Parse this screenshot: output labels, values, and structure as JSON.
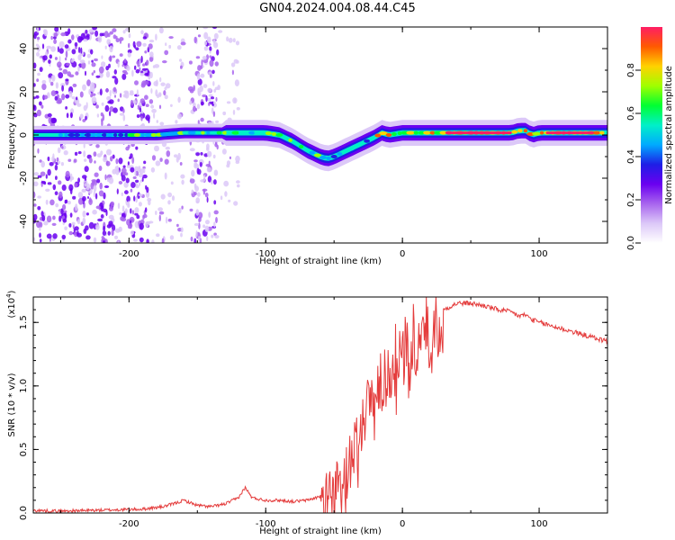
{
  "title": "GN04.2024.004.08.44.C45",
  "colors": {
    "signal": "#e43c3c",
    "axis": "#000000",
    "background": "#ffffff"
  },
  "chart_data": [
    {
      "type": "heatmap",
      "xlabel": "Height of straight line (km)",
      "ylabel": "Frequency (Hz)",
      "xlim": [
        -270,
        150
      ],
      "ylim": [
        -50,
        50
      ],
      "x_ticks": [
        -200,
        -100,
        0,
        100
      ],
      "y_ticks": [
        -40,
        -20,
        0,
        20,
        40
      ],
      "colorbar": {
        "label": "Normalized spectral amplitude",
        "range": [
          0,
          1
        ],
        "ticks": [
          "0.0",
          "0.2",
          "0.4",
          "0.6",
          "0.8"
        ],
        "tick_values": [
          0,
          0.2,
          0.4,
          0.6,
          0.8
        ],
        "colormap": [
          "#ffffff",
          "#dcc8f8",
          "#a864ee",
          "#6a00f0",
          "#1e1ee6",
          "#00aaff",
          "#00f0c8",
          "#00ff32",
          "#a0ff00",
          "#ffd200",
          "#ff5a00",
          "#ff1e64"
        ]
      },
      "ridge": {
        "x": [
          -265,
          -240,
          -220,
          -200,
          -180,
          -160,
          -140,
          -120,
          -100,
          -90,
          -80,
          -70,
          -60,
          -55,
          -50,
          -40,
          -30,
          -20,
          -15,
          -10,
          0,
          20,
          40,
          60,
          80,
          85,
          90,
          95,
          100,
          120,
          150
        ],
        "frequency": [
          0,
          0,
          0,
          0,
          0,
          1,
          1,
          1,
          1,
          0,
          -3,
          -7,
          -10,
          -11,
          -10,
          -7,
          -4,
          -1,
          1,
          0,
          1,
          1,
          1,
          1,
          1,
          2,
          2,
          0,
          1,
          1,
          1
        ]
      }
    },
    {
      "type": "line",
      "xlabel": "Height of straight line (km)",
      "ylabel": "SNR (10 * v/v)",
      "yscale_label": "(x10",
      "yscale_exponent": "4",
      "yscale_suffix": ")",
      "xlim": [
        -270,
        150
      ],
      "ylim": [
        0,
        1.7
      ],
      "x_ticks": [
        -200,
        -100,
        0,
        100
      ],
      "y_ticks": [
        "0.0",
        "0.5",
        "1.0",
        "1.5"
      ],
      "y_tick_values": [
        0,
        0.5,
        1.0,
        1.5
      ],
      "series": [
        {
          "x": [
            -270,
            -250,
            -230,
            -210,
            -190,
            -175,
            -165,
            -160,
            -150,
            -140,
            -130,
            -120,
            -115,
            -110,
            -100,
            -90,
            -80,
            -70,
            -60,
            -50,
            -45,
            -40,
            -35,
            -30,
            -25,
            -20,
            -15,
            -10,
            -5,
            0,
            5,
            10,
            20,
            25,
            30,
            40,
            50,
            60,
            70,
            80,
            85,
            90,
            95,
            100,
            110,
            120,
            130,
            140,
            150
          ],
          "y": [
            0.02,
            0.015,
            0.02,
            0.025,
            0.03,
            0.05,
            0.08,
            0.1,
            0.06,
            0.05,
            0.07,
            0.12,
            0.2,
            0.12,
            0.1,
            0.1,
            0.09,
            0.1,
            0.13,
            0.18,
            0.24,
            0.35,
            0.5,
            0.7,
            0.85,
            0.95,
            1.05,
            1.12,
            1.2,
            1.25,
            1.3,
            1.35,
            1.45,
            1.55,
            1.6,
            1.65,
            1.65,
            1.63,
            1.6,
            1.58,
            1.55,
            1.56,
            1.52,
            1.5,
            1.47,
            1.44,
            1.41,
            1.38,
            1.35
          ]
        }
      ]
    }
  ]
}
